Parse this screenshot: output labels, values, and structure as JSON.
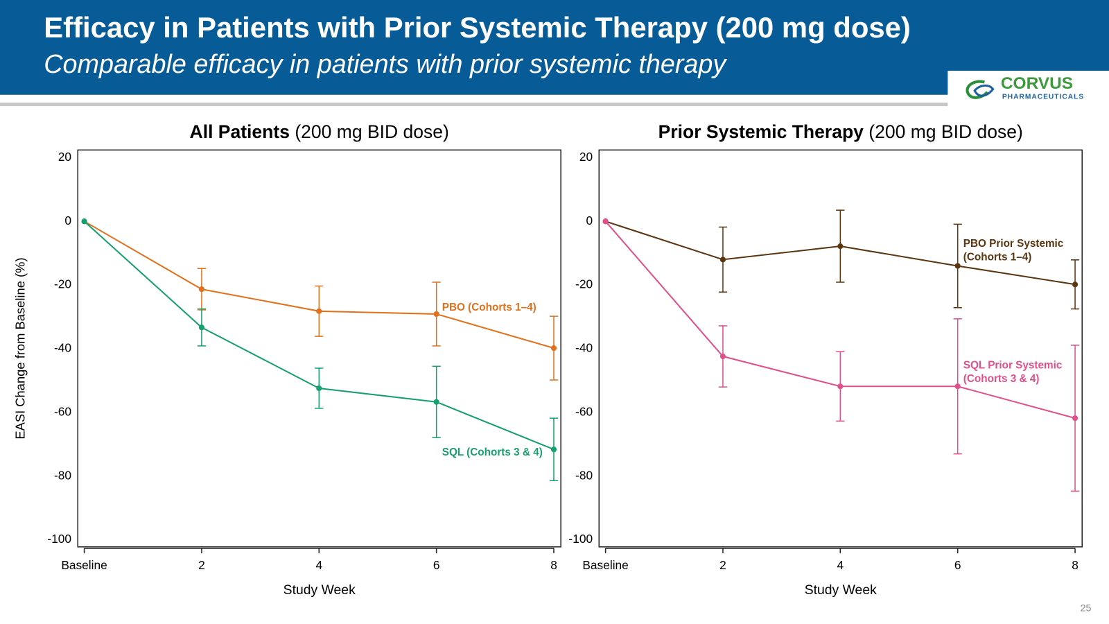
{
  "header": {
    "title": "Efficacy in Patients with Prior Systemic Therapy (200 mg dose)",
    "subtitle": "Comparable efficacy in patients with prior systemic therapy",
    "logo": {
      "name": "CORVUS",
      "tagline": "PHARMACEUTICALS"
    }
  },
  "page_number": "25",
  "chart_data": [
    {
      "type": "line",
      "title": "All Patients",
      "subtitle": "(200 mg BID dose)",
      "x_label": "Study Week",
      "y_label": "EASI Change from Baseline (%)",
      "x": [
        0,
        2,
        4,
        6,
        8
      ],
      "xlim": [
        -0.11,
        8.12
      ],
      "xticks": [
        {
          "value": 0,
          "label": "Baseline"
        },
        2,
        4,
        6,
        8
      ],
      "ylim": [
        -102.2,
        22.4
      ],
      "yticks": [
        20,
        0,
        -20,
        -40,
        -60,
        -80,
        -100
      ],
      "series": [
        {
          "name": [
            "PBO (Cohorts 1–4)"
          ],
          "color": "#e2711d",
          "values": [
            0,
            -21.3,
            -28.2,
            -29.1,
            -39.8
          ],
          "errors": [
            null,
            6.5,
            7.9,
            10,
            10
          ]
        },
        {
          "name": [
            "SQL (Cohorts 3 & 4)"
          ],
          "color": "#17a06e",
          "values": [
            0,
            -33.3,
            -52.4,
            -56.7,
            -71.6
          ],
          "errors": [
            null,
            5.8,
            6.3,
            11.2,
            9.8
          ]
        }
      ]
    },
    {
      "type": "line",
      "title": "Prior Systemic Therapy",
      "subtitle": "(200 mg BID dose)",
      "x_label": "Study Week",
      "x": [
        0,
        2,
        4,
        6,
        8
      ],
      "xlim": [
        -0.11,
        8.12
      ],
      "xticks": [
        {
          "value": 0,
          "label": "Baseline"
        },
        2,
        4,
        6,
        8
      ],
      "ylim": [
        -102.2,
        22.4
      ],
      "yticks": [
        20,
        0,
        -20,
        -40,
        -60,
        -80,
        -100
      ],
      "series": [
        {
          "name": [
            "PBO Prior Systemic",
            "(Cohorts 1–4)"
          ],
          "color": "#5b3611",
          "values": [
            0,
            -12,
            -7.8,
            -14,
            -19.8
          ],
          "errors": [
            null,
            10.2,
            11.3,
            13.1,
            7.7
          ]
        },
        {
          "name": [
            "SQL Prior Systemic",
            "(Cohorts 3 & 4)"
          ],
          "color": "#e0508a",
          "values": [
            0,
            -42.4,
            -51.8,
            -51.8,
            -61.8
          ],
          "errors": [
            null,
            9.6,
            10.9,
            21.2,
            22.9
          ]
        }
      ]
    }
  ]
}
